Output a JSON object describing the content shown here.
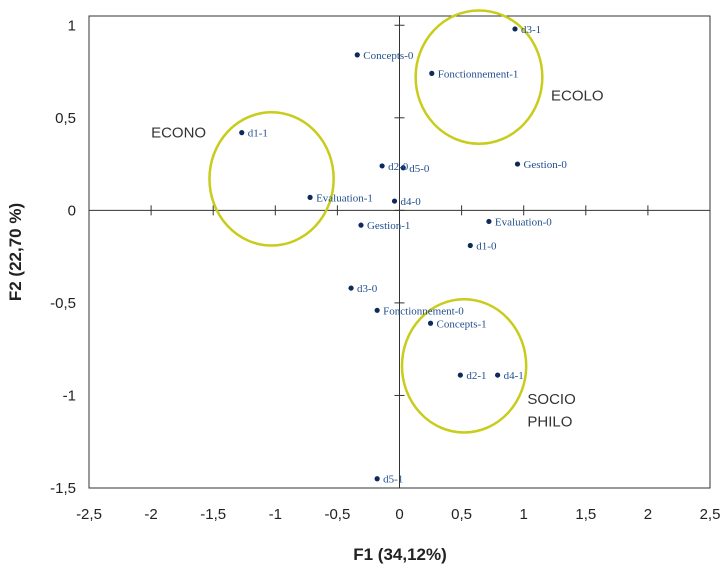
{
  "chart_data": {
    "type": "scatter",
    "title": "",
    "xlabel": "F1 (34,12%)",
    "ylabel": "F2 (22,70 %)",
    "xlim": [
      -2.5,
      2.5
    ],
    "ylim": [
      -1.5,
      1
    ],
    "x_ticks": [
      -2.5,
      -2,
      -1.5,
      -1,
      -0.5,
      0,
      0.5,
      1,
      1.5,
      2,
      2.5
    ],
    "x_tick_labels": [
      "-2,5",
      "-2",
      "-1,5",
      "-1",
      "-0,5",
      "0",
      "0,5",
      "1",
      "1,5",
      "2",
      "2,5"
    ],
    "y_ticks": [
      1,
      0.5,
      0,
      -0.5,
      -1,
      -1.5
    ],
    "y_tick_labels": [
      "1",
      "0,5",
      "0",
      "-0,5",
      "-1",
      "-1,5"
    ],
    "grid": false,
    "point_color": "#0d2a5c",
    "label_color": "#1f4e8c",
    "circle_color": "#c8cc1a",
    "points": [
      {
        "label": "d3-1",
        "x": 0.93,
        "y": 0.98
      },
      {
        "label": "Concepts-0",
        "x": -0.34,
        "y": 0.84
      },
      {
        "label": "Fonctionnement-1",
        "x": 0.26,
        "y": 0.74
      },
      {
        "label": "d1-1",
        "x": -1.27,
        "y": 0.42
      },
      {
        "label": "d2-0",
        "x": -0.14,
        "y": 0.24
      },
      {
        "label": "d5-0",
        "x": 0.03,
        "y": 0.23
      },
      {
        "label": "Gestion-0",
        "x": 0.95,
        "y": 0.25
      },
      {
        "label": "Evaluation-1",
        "x": -0.72,
        "y": 0.07
      },
      {
        "label": "d4-0",
        "x": -0.04,
        "y": 0.05
      },
      {
        "label": "Evaluation-0",
        "x": 0.72,
        "y": -0.06
      },
      {
        "label": "Gestion-1",
        "x": -0.31,
        "y": -0.08
      },
      {
        "label": "d1-0",
        "x": 0.57,
        "y": -0.19
      },
      {
        "label": "d3-0",
        "x": -0.39,
        "y": -0.42
      },
      {
        "label": "Fonctionnement-0",
        "x": -0.18,
        "y": -0.54
      },
      {
        "label": "Concepts-1",
        "x": 0.25,
        "y": -0.61
      },
      {
        "label": "d2-1",
        "x": 0.49,
        "y": -0.89
      },
      {
        "label": "d4-1",
        "x": 0.79,
        "y": -0.89
      },
      {
        "label": "d5-1",
        "x": -0.18,
        "y": -1.45
      }
    ],
    "groups": [
      {
        "label": "ECOLO",
        "cx": 0.64,
        "cy": 0.72,
        "rx": 0.51,
        "ry": 0.36,
        "label_x": 1.22,
        "label_y": 0.62
      },
      {
        "label": "ECONO",
        "cx": -1.03,
        "cy": 0.17,
        "rx": 0.5,
        "ry": 0.36,
        "label_x": -2.0,
        "label_y": 0.42
      },
      {
        "label": "SOCIO",
        "cx": 0.52,
        "cy": -0.84,
        "rx": 0.5,
        "ry": 0.36,
        "label_x": 1.03,
        "label_y": -1.02
      },
      {
        "label": "PHILO",
        "cx": 0.52,
        "cy": -0.84,
        "rx": 0.5,
        "ry": 0.36,
        "label_x": 1.03,
        "label_y": -1.14
      }
    ]
  }
}
